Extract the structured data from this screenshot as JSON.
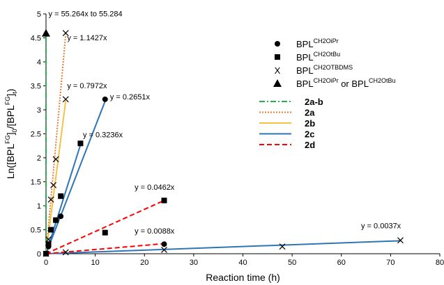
{
  "chart_data": {
    "type": "scatter",
    "title": "",
    "xlabel": "Reaction time (h)",
    "ylabel": {
      "base": "Ln([BPL",
      "sup1": "FG",
      "mid": "]",
      "sub": "0",
      "mid2": "/[BPL",
      "sup2": "FG",
      "end": "]",
      "sub2": "t",
      "close": ")"
    },
    "xlim": [
      0,
      80
    ],
    "ylim": [
      0,
      5
    ],
    "xticks": [
      0,
      10,
      20,
      30,
      40,
      50,
      60,
      70,
      80
    ],
    "yticks": [
      0,
      0.5,
      1,
      1.5,
      2,
      2.5,
      3,
      3.5,
      4,
      4.5,
      5
    ],
    "grid": false,
    "legend_position": "top-right",
    "point_series": [
      {
        "key": "ipr",
        "marker": "circle",
        "label": {
          "base": "BPL",
          "sup": "CH2OiPr"
        },
        "points": [
          [
            0,
            0
          ],
          [
            0.5,
            0.15
          ],
          [
            1,
            0.5
          ],
          [
            2,
            0.7
          ],
          [
            3,
            0.78
          ],
          [
            12,
            3.22
          ],
          [
            24,
            0.2
          ]
        ]
      },
      {
        "key": "tbu",
        "marker": "square",
        "label": {
          "base": "BPL",
          "sup": "CH2OtBu"
        },
        "points": [
          [
            0,
            0
          ],
          [
            0.5,
            0.2
          ],
          [
            1,
            0.5
          ],
          [
            2,
            0.7
          ],
          [
            3,
            1.2
          ],
          [
            7,
            2.3
          ],
          [
            12,
            0.44
          ],
          [
            24,
            1.11
          ]
        ]
      },
      {
        "key": "tbdms",
        "marker": "x",
        "label": {
          "base": "BPL",
          "sup": "CH2OTBDMS"
        },
        "points": [
          [
            0,
            0
          ],
          [
            0.5,
            0.3
          ],
          [
            1,
            1.13
          ],
          [
            1.5,
            1.43
          ],
          [
            2,
            1.97
          ],
          [
            4,
            3.22
          ],
          [
            4,
            4.6
          ],
          [
            4,
            0.03
          ],
          [
            24,
            0.08
          ],
          [
            48,
            0.15
          ],
          [
            72,
            0.28
          ]
        ]
      },
      {
        "key": "both",
        "marker": "triangle",
        "label": {
          "base": "BPL",
          "sup": "CH2OiPr",
          "mid": " or BPL",
          "sup2": "CH2OtBu"
        },
        "points": [
          [
            0,
            4.6
          ]
        ]
      }
    ],
    "line_series": [
      {
        "name": "2a-b",
        "color": "#22b14c",
        "dash": "dashdot",
        "width": 2,
        "x": [
          0,
          0
        ],
        "y": [
          0,
          4.6
        ]
      },
      {
        "name": "2a",
        "color": "#e07b39",
        "dash": "dotted",
        "width": 2,
        "x": [
          0,
          4
        ],
        "y": [
          0,
          4.57
        ]
      },
      {
        "name": "2b",
        "color": "#f5c242",
        "dash": "solid",
        "width": 2,
        "x": [
          0,
          4
        ],
        "y": [
          0,
          3.19
        ]
      },
      {
        "name": "2c",
        "color": "#2e75b6",
        "dash": "solid",
        "width": 2,
        "x": [
          0,
          12
        ],
        "y": [
          0,
          3.18
        ]
      },
      {
        "name": "2c",
        "color": "#2e75b6",
        "dash": "solid",
        "width": 2,
        "x": [
          0,
          7
        ],
        "y": [
          0,
          2.27
        ]
      },
      {
        "name": "2c",
        "color": "#2e75b6",
        "dash": "solid",
        "width": 2,
        "x": [
          0,
          72
        ],
        "y": [
          0,
          0.27
        ]
      },
      {
        "name": "2d",
        "color": "#ff0000",
        "dash": "dashed",
        "width": 2,
        "x": [
          0,
          24
        ],
        "y": [
          0,
          1.11
        ]
      },
      {
        "name": "2d",
        "color": "#ff0000",
        "dash": "dashed",
        "width": 2,
        "x": [
          0,
          24
        ],
        "y": [
          0,
          0.21
        ]
      }
    ],
    "line_legend": [
      "2a-b",
      "2a",
      "2b",
      "2c",
      "2d"
    ],
    "annotations": [
      {
        "text": "y = 55.264x to 55.284",
        "x": 0.5,
        "y": 4.95
      },
      {
        "text": "y = 1.1427x",
        "x": 4.3,
        "y": 4.45
      },
      {
        "text": "y = 0.7972x",
        "x": 4.3,
        "y": 3.45
      },
      {
        "text": "y = 0.2651x",
        "x": 13,
        "y": 3.22
      },
      {
        "text": "y = 0.3236x",
        "x": 7.5,
        "y": 2.43
      },
      {
        "text": "y = 0.0462x",
        "x": 18,
        "y": 1.33
      },
      {
        "text": "y = 0.0088x",
        "x": 18,
        "y": 0.42
      },
      {
        "text": "y = 0.0037x",
        "x": 64,
        "y": 0.53
      }
    ]
  }
}
